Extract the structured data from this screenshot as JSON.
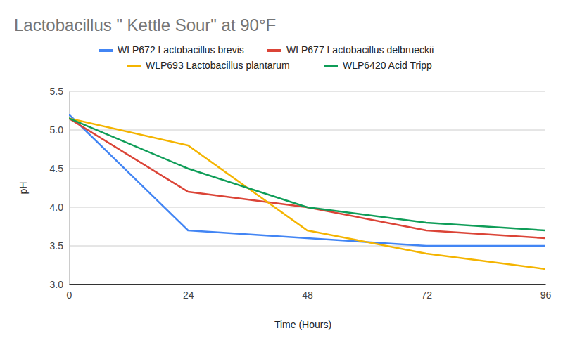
{
  "chart_data": {
    "type": "line",
    "title": "Lactobacillus \" Kettle Sour\" at 90°F",
    "x_label": "Time (Hours)",
    "y_label": "pH",
    "x": [
      0,
      24,
      48,
      72,
      96
    ],
    "series": [
      {
        "name": "WLP672 Lactobacillus brevis",
        "color": "#4285f4",
        "values": [
          5.2,
          3.7,
          3.6,
          3.5,
          3.5
        ]
      },
      {
        "name": "WLP677 Lactobacillus delbrueckii",
        "color": "#db4437",
        "values": [
          5.15,
          4.2,
          4.0,
          3.7,
          3.6
        ]
      },
      {
        "name": "WLP693 Lactobacillus plantarum",
        "color": "#f4b400",
        "values": [
          5.15,
          4.8,
          3.7,
          3.4,
          3.2
        ]
      },
      {
        "name": "WLP6420 Acid Tripp",
        "color": "#0f9d58",
        "values": [
          5.15,
          4.5,
          4.0,
          3.8,
          3.7
        ]
      }
    ],
    "xlim": [
      0,
      96
    ],
    "xticks": [
      0,
      24,
      48,
      72,
      96
    ],
    "ylim": [
      3,
      5.5
    ],
    "yticks": [
      {
        "value": 3,
        "label": "3.0"
      },
      3.5,
      {
        "value": 4,
        "label": "4.0"
      },
      4.5,
      {
        "value": 5,
        "label": "5.0"
      },
      5.5
    ],
    "grid": true,
    "legend": "top"
  }
}
